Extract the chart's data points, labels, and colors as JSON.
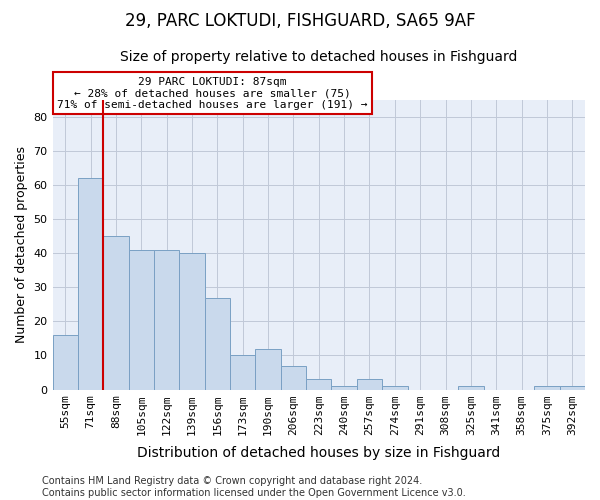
{
  "title1": "29, PARC LOKTUDI, FISHGUARD, SA65 9AF",
  "title2": "Size of property relative to detached houses in Fishguard",
  "xlabel": "Distribution of detached houses by size in Fishguard",
  "ylabel": "Number of detached properties",
  "categories": [
    "55sqm",
    "71sqm",
    "88sqm",
    "105sqm",
    "122sqm",
    "139sqm",
    "156sqm",
    "173sqm",
    "190sqm",
    "206sqm",
    "223sqm",
    "240sqm",
    "257sqm",
    "274sqm",
    "291sqm",
    "308sqm",
    "325sqm",
    "341sqm",
    "358sqm",
    "375sqm",
    "392sqm"
  ],
  "values": [
    16,
    62,
    45,
    41,
    41,
    40,
    27,
    10,
    12,
    7,
    3,
    1,
    3,
    1,
    0,
    0,
    1,
    0,
    0,
    1,
    1
  ],
  "bar_color": "#c9d9ec",
  "bar_edge_color": "#7aa0c4",
  "vline_x": 1.5,
  "annotation_text": "29 PARC LOKTUDI: 87sqm\n← 28% of detached houses are smaller (75)\n71% of semi-detached houses are larger (191) →",
  "annotation_box_color": "#ffffff",
  "annotation_box_edge": "#cc0000",
  "vline_color": "#cc0000",
  "ylim": [
    0,
    85
  ],
  "yticks": [
    0,
    10,
    20,
    30,
    40,
    50,
    60,
    70,
    80
  ],
  "grid_color": "#c0c8d8",
  "bg_color": "#e8eef8",
  "footer": "Contains HM Land Registry data © Crown copyright and database right 2024.\nContains public sector information licensed under the Open Government Licence v3.0.",
  "title1_fontsize": 12,
  "title2_fontsize": 10,
  "xlabel_fontsize": 10,
  "ylabel_fontsize": 9,
  "tick_fontsize": 8,
  "annotation_fontsize": 8,
  "footer_fontsize": 7
}
